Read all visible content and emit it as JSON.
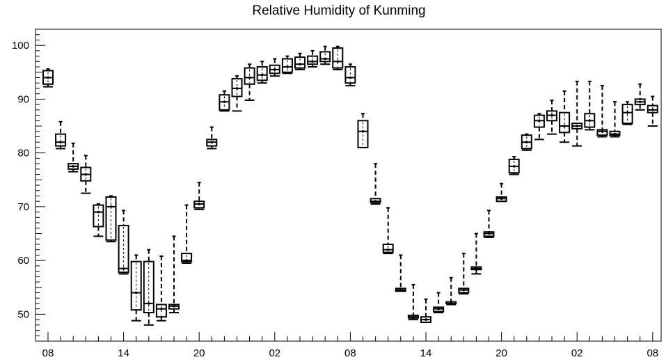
{
  "chart_data": {
    "type": "box",
    "title": "Relative Humidity of Kunming",
    "xlabel": "",
    "ylabel": "",
    "ylim": [
      45,
      103
    ],
    "yticks": [
      50,
      60,
      70,
      80,
      90,
      100
    ],
    "x_tick_labels": [
      {
        "x": 0,
        "label": "08"
      },
      {
        "x": 6,
        "label": "14"
      },
      {
        "x": 12,
        "label": "20"
      },
      {
        "x": 18,
        "label": "02"
      },
      {
        "x": 24,
        "label": "08"
      },
      {
        "x": 30,
        "label": "14"
      },
      {
        "x": 36,
        "label": "20"
      },
      {
        "x": 42,
        "label": "02"
      },
      {
        "x": 48,
        "label": "08"
      }
    ],
    "grid": false,
    "line_color": "#000000",
    "boxes": [
      {
        "x": 0,
        "whisker_low": 92.3,
        "q1": 92.8,
        "median": 94.0,
        "q3": 95.3,
        "whisker_high": 95.6
      },
      {
        "x": 1,
        "whisker_low": 80.8,
        "q1": 81.3,
        "median": 82.0,
        "q3": 83.5,
        "whisker_high": 85.8
      },
      {
        "x": 2,
        "whisker_low": 76.5,
        "q1": 77.0,
        "median": 77.5,
        "q3": 78.0,
        "whisker_high": 81.8
      },
      {
        "x": 3,
        "whisker_low": 72.5,
        "q1": 74.8,
        "median": 76.0,
        "q3": 77.3,
        "whisker_high": 79.5
      },
      {
        "x": 4,
        "whisker_low": 64.5,
        "q1": 66.3,
        "median": 69.0,
        "q3": 70.3,
        "whisker_high": 70.5
      },
      {
        "x": 5,
        "whisker_low": 63.5,
        "q1": 63.8,
        "median": 70.0,
        "q3": 71.8,
        "whisker_high": 72.0
      },
      {
        "x": 6,
        "whisker_low": 57.5,
        "q1": 57.8,
        "median": 58.5,
        "q3": 66.5,
        "whisker_high": 69.3
      },
      {
        "x": 7,
        "whisker_low": 48.8,
        "q1": 50.8,
        "median": 54.0,
        "q3": 59.8,
        "whisker_high": 61.0
      },
      {
        "x": 8,
        "whisker_low": 48.0,
        "q1": 50.3,
        "median": 52.0,
        "q3": 59.8,
        "whisker_high": 62.0
      },
      {
        "x": 9,
        "whisker_low": 48.8,
        "q1": 49.5,
        "median": 51.0,
        "q3": 51.8,
        "whisker_high": 60.8
      },
      {
        "x": 10,
        "whisker_low": 50.3,
        "q1": 51.0,
        "median": 51.5,
        "q3": 51.8,
        "whisker_high": 64.5
      },
      {
        "x": 11,
        "whisker_low": 59.5,
        "q1": 59.8,
        "median": 60.0,
        "q3": 61.3,
        "whisker_high": 70.3
      },
      {
        "x": 12,
        "whisker_low": 69.5,
        "q1": 69.8,
        "median": 70.5,
        "q3": 71.0,
        "whisker_high": 74.5
      },
      {
        "x": 13,
        "whisker_low": 80.8,
        "q1": 81.3,
        "median": 82.0,
        "q3": 82.5,
        "whisker_high": 84.8
      },
      {
        "x": 14,
        "whisker_low": 87.8,
        "q1": 88.0,
        "median": 89.5,
        "q3": 90.8,
        "whisker_high": 91.5
      },
      {
        "x": 15,
        "whisker_low": 87.8,
        "q1": 90.5,
        "median": 92.0,
        "q3": 93.8,
        "whisker_high": 94.3
      },
      {
        "x": 16,
        "whisker_low": 89.8,
        "q1": 92.8,
        "median": 94.0,
        "q3": 95.8,
        "whisker_high": 96.5
      },
      {
        "x": 17,
        "whisker_low": 93.0,
        "q1": 93.5,
        "median": 94.5,
        "q3": 96.0,
        "whisker_high": 97.0
      },
      {
        "x": 18,
        "whisker_low": 94.3,
        "q1": 94.8,
        "median": 95.5,
        "q3": 96.3,
        "whisker_high": 97.5
      },
      {
        "x": 19,
        "whisker_low": 94.8,
        "q1": 95.0,
        "median": 96.0,
        "q3": 97.5,
        "whisker_high": 98.0
      },
      {
        "x": 20,
        "whisker_low": 95.5,
        "q1": 95.8,
        "median": 96.5,
        "q3": 97.8,
        "whisker_high": 98.5
      },
      {
        "x": 21,
        "whisker_low": 96.0,
        "q1": 96.5,
        "median": 97.0,
        "q3": 98.0,
        "whisker_high": 99.0
      },
      {
        "x": 22,
        "whisker_low": 96.5,
        "q1": 97.0,
        "median": 97.5,
        "q3": 98.8,
        "whisker_high": 99.8
      },
      {
        "x": 23,
        "whisker_low": 95.5,
        "q1": 95.8,
        "median": 97.0,
        "q3": 99.5,
        "whisker_high": 99.8
      },
      {
        "x": 24,
        "whisker_low": 92.5,
        "q1": 93.0,
        "median": 94.0,
        "q3": 96.0,
        "whisker_high": 96.5
      },
      {
        "x": 25,
        "whisker_low": 81.0,
        "q1": 81.0,
        "median": 84.0,
        "q3": 86.0,
        "whisker_high": 87.3
      },
      {
        "x": 26,
        "whisker_low": 70.5,
        "q1": 70.8,
        "median": 71.0,
        "q3": 71.5,
        "whisker_high": 78.0
      },
      {
        "x": 27,
        "whisker_low": 61.3,
        "q1": 61.5,
        "median": 62.0,
        "q3": 63.0,
        "whisker_high": 69.8
      },
      {
        "x": 28,
        "whisker_low": 54.3,
        "q1": 54.3,
        "median": 54.5,
        "q3": 54.8,
        "whisker_high": 61.0
      },
      {
        "x": 29,
        "whisker_low": 49.0,
        "q1": 49.3,
        "median": 49.5,
        "q3": 49.8,
        "whisker_high": 55.5
      },
      {
        "x": 30,
        "whisker_low": 48.5,
        "q1": 48.5,
        "median": 49.0,
        "q3": 49.5,
        "whisker_high": 52.8
      },
      {
        "x": 31,
        "whisker_low": 50.3,
        "q1": 50.5,
        "median": 51.0,
        "q3": 51.3,
        "whisker_high": 54.0
      },
      {
        "x": 32,
        "whisker_low": 51.8,
        "q1": 52.0,
        "median": 52.0,
        "q3": 52.3,
        "whisker_high": 56.8
      },
      {
        "x": 33,
        "whisker_low": 53.8,
        "q1": 54.0,
        "median": 54.5,
        "q3": 54.8,
        "whisker_high": 61.3
      },
      {
        "x": 34,
        "whisker_low": 57.5,
        "q1": 58.3,
        "median": 58.5,
        "q3": 58.8,
        "whisker_high": 65.0
      },
      {
        "x": 35,
        "whisker_low": 64.3,
        "q1": 64.5,
        "median": 65.0,
        "q3": 65.3,
        "whisker_high": 69.3
      },
      {
        "x": 36,
        "whisker_low": 71.0,
        "q1": 71.0,
        "median": 71.5,
        "q3": 71.8,
        "whisker_high": 74.3
      },
      {
        "x": 37,
        "whisker_low": 76.0,
        "q1": 76.3,
        "median": 77.5,
        "q3": 78.8,
        "whisker_high": 79.3
      },
      {
        "x": 38,
        "whisker_low": 80.5,
        "q1": 80.8,
        "median": 82.0,
        "q3": 83.3,
        "whisker_high": 83.5
      },
      {
        "x": 39,
        "whisker_low": 82.5,
        "q1": 84.8,
        "median": 86.0,
        "q3": 87.0,
        "whisker_high": 87.3
      },
      {
        "x": 40,
        "whisker_low": 83.5,
        "q1": 86.0,
        "median": 87.0,
        "q3": 87.8,
        "whisker_high": 89.8
      },
      {
        "x": 41,
        "whisker_low": 82.0,
        "q1": 83.8,
        "median": 85.0,
        "q3": 87.5,
        "whisker_high": 91.5
      },
      {
        "x": 42,
        "whisker_low": 81.3,
        "q1": 84.5,
        "median": 85.0,
        "q3": 85.5,
        "whisker_high": 93.3
      },
      {
        "x": 43,
        "whisker_low": 84.3,
        "q1": 84.8,
        "median": 86.0,
        "q3": 87.3,
        "whisker_high": 93.3
      },
      {
        "x": 44,
        "whisker_low": 83.0,
        "q1": 83.3,
        "median": 84.0,
        "q3": 84.3,
        "whisker_high": 92.5
      },
      {
        "x": 45,
        "whisker_low": 83.0,
        "q1": 83.3,
        "median": 83.5,
        "q3": 84.0,
        "whisker_high": 89.5
      },
      {
        "x": 46,
        "whisker_low": 85.3,
        "q1": 85.5,
        "median": 87.5,
        "q3": 89.0,
        "whisker_high": 89.5
      },
      {
        "x": 47,
        "whisker_low": 88.0,
        "q1": 89.0,
        "median": 89.5,
        "q3": 90.0,
        "whisker_high": 92.8
      },
      {
        "x": 48,
        "whisker_low": 85.0,
        "q1": 87.5,
        "median": 88.0,
        "q3": 88.8,
        "whisker_high": 90.5
      }
    ]
  }
}
